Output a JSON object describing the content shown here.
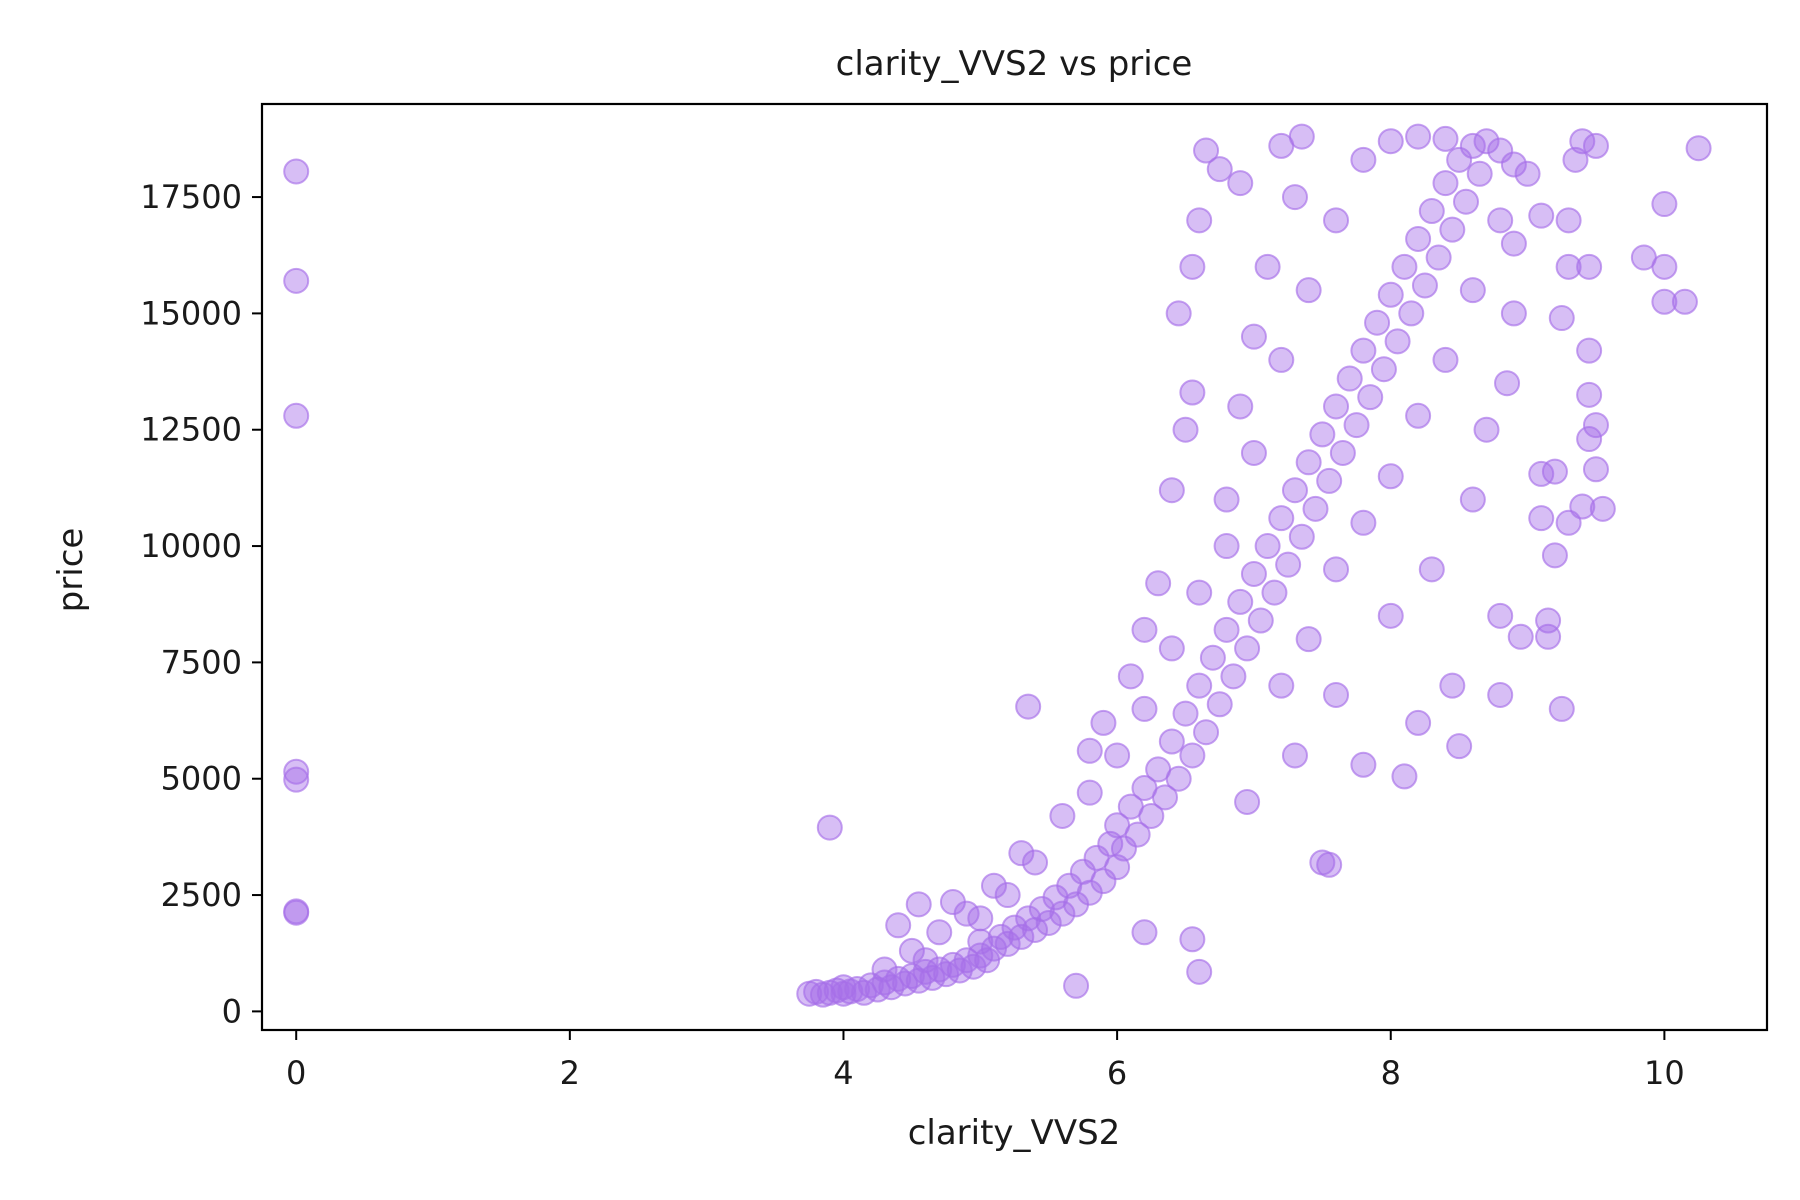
{
  "chart_data": {
    "type": "scatter",
    "title": "clarity_VVS2 vs price",
    "xlabel": "clarity_VVS2",
    "ylabel": "price",
    "xlim": [
      -0.25,
      10.75
    ],
    "ylim": [
      -400,
      19500
    ],
    "x_ticks": [
      0,
      2,
      4,
      6,
      8,
      10
    ],
    "x_tick_labels": [
      "0",
      "2",
      "4",
      "6",
      "8",
      "10"
    ],
    "y_ticks": [
      0,
      2500,
      5000,
      7500,
      10000,
      12500,
      15000,
      17500
    ],
    "y_tick_labels": [
      "0",
      "2500",
      "5000",
      "7500",
      "10000",
      "12500",
      "15000",
      "17500"
    ],
    "grid": false,
    "legend": "none",
    "marker_color": "#a66ee8",
    "marker_opacity": 0.45,
    "series": [
      {
        "points": [
          [
            0,
            18050
          ],
          [
            0,
            15700
          ],
          [
            0,
            12800
          ],
          [
            0,
            5150
          ],
          [
            0,
            4980
          ],
          [
            0,
            2150
          ],
          [
            0,
            2120
          ],
          [
            3.75,
            380
          ],
          [
            3.8,
            420
          ],
          [
            3.85,
            360
          ],
          [
            3.9,
            400
          ],
          [
            3.95,
            450
          ],
          [
            4.0,
            380
          ],
          [
            4.0,
            520
          ],
          [
            4.05,
            430
          ],
          [
            4.1,
            480
          ],
          [
            4.15,
            400
          ],
          [
            4.2,
            560
          ],
          [
            4.25,
            470
          ],
          [
            4.3,
            620
          ],
          [
            4.35,
            520
          ],
          [
            4.4,
            700
          ],
          [
            4.45,
            600
          ],
          [
            4.5,
            760
          ],
          [
            4.55,
            660
          ],
          [
            4.6,
            850
          ],
          [
            4.65,
            720
          ],
          [
            4.7,
            900
          ],
          [
            4.75,
            800
          ],
          [
            4.8,
            1000
          ],
          [
            4.85,
            880
          ],
          [
            4.9,
            1100
          ],
          [
            4.95,
            960
          ],
          [
            5.0,
            1200
          ],
          [
            5.0,
            1500
          ],
          [
            5.05,
            1100
          ],
          [
            5.1,
            1350
          ],
          [
            5.15,
            1600
          ],
          [
            5.2,
            1450
          ],
          [
            5.25,
            1800
          ],
          [
            5.3,
            1600
          ],
          [
            5.35,
            2000
          ],
          [
            5.4,
            1750
          ],
          [
            5.45,
            2200
          ],
          [
            5.5,
            1900
          ],
          [
            5.55,
            2450
          ],
          [
            5.6,
            2100
          ],
          [
            5.65,
            2700
          ],
          [
            5.7,
            2300
          ],
          [
            5.75,
            3000
          ],
          [
            5.8,
            2550
          ],
          [
            5.85,
            3300
          ],
          [
            5.9,
            2800
          ],
          [
            5.95,
            3600
          ],
          [
            6.0,
            3100
          ],
          [
            6.0,
            4000
          ],
          [
            6.05,
            3500
          ],
          [
            6.1,
            4400
          ],
          [
            6.15,
            3800
          ],
          [
            6.2,
            4800
          ],
          [
            6.25,
            4200
          ],
          [
            6.3,
            5200
          ],
          [
            6.35,
            4600
          ],
          [
            6.4,
            5800
          ],
          [
            6.45,
            5000
          ],
          [
            6.5,
            6400
          ],
          [
            6.55,
            5500
          ],
          [
            6.6,
            7000
          ],
          [
            6.65,
            6000
          ],
          [
            6.7,
            7600
          ],
          [
            6.75,
            6600
          ],
          [
            6.8,
            8200
          ],
          [
            6.85,
            7200
          ],
          [
            6.9,
            8800
          ],
          [
            6.95,
            7800
          ],
          [
            7.0,
            9400
          ],
          [
            7.05,
            8400
          ],
          [
            7.1,
            10000
          ],
          [
            7.15,
            9000
          ],
          [
            7.2,
            10600
          ],
          [
            7.25,
            9600
          ],
          [
            7.3,
            11200
          ],
          [
            7.35,
            10200
          ],
          [
            7.4,
            11800
          ],
          [
            7.45,
            10800
          ],
          [
            7.5,
            12400
          ],
          [
            7.55,
            11400
          ],
          [
            7.6,
            13000
          ],
          [
            7.65,
            12000
          ],
          [
            7.7,
            13600
          ],
          [
            7.75,
            12600
          ],
          [
            7.8,
            14200
          ],
          [
            7.85,
            13200
          ],
          [
            7.9,
            14800
          ],
          [
            7.95,
            13800
          ],
          [
            8.0,
            15400
          ],
          [
            8.05,
            14400
          ],
          [
            8.1,
            16000
          ],
          [
            8.15,
            15000
          ],
          [
            8.2,
            16600
          ],
          [
            8.25,
            15600
          ],
          [
            8.3,
            17200
          ],
          [
            8.35,
            16200
          ],
          [
            8.4,
            17800
          ],
          [
            8.45,
            16800
          ],
          [
            8.5,
            18300
          ],
          [
            8.55,
            17400
          ],
          [
            8.6,
            18600
          ],
          [
            8.65,
            18000
          ],
          [
            8.7,
            18700
          ],
          [
            8.8,
            18500
          ],
          [
            8.9,
            18200
          ],
          [
            9.0,
            18000
          ],
          [
            3.9,
            3950
          ],
          [
            5.35,
            6550
          ],
          [
            5.7,
            550
          ],
          [
            6.2,
            1700
          ],
          [
            6.55,
            1550
          ],
          [
            6.6,
            850
          ],
          [
            7.5,
            3200
          ],
          [
            7.55,
            3150
          ],
          [
            7.8,
            5300
          ],
          [
            8.1,
            5050
          ],
          [
            8.2,
            6200
          ],
          [
            8.45,
            7000
          ],
          [
            8.5,
            5700
          ],
          [
            8.8,
            6800
          ],
          [
            8.8,
            8500
          ],
          [
            8.95,
            8050
          ],
          [
            9.15,
            8050
          ],
          [
            9.15,
            8400
          ],
          [
            9.25,
            6500
          ],
          [
            9.1,
            10600
          ],
          [
            9.2,
            9800
          ],
          [
            9.3,
            10500
          ],
          [
            9.4,
            10850
          ],
          [
            9.55,
            10800
          ],
          [
            9.1,
            11550
          ],
          [
            9.2,
            11600
          ],
          [
            9.5,
            11650
          ],
          [
            9.45,
            12300
          ],
          [
            9.5,
            12600
          ],
          [
            9.45,
            13250
          ],
          [
            9.25,
            14900
          ],
          [
            9.45,
            14200
          ],
          [
            9.3,
            16000
          ],
          [
            9.45,
            16000
          ],
          [
            9.3,
            17000
          ],
          [
            9.1,
            17100
          ],
          [
            9.4,
            18700
          ],
          [
            9.5,
            18600
          ],
          [
            9.35,
            18300
          ],
          [
            9.85,
            16200
          ],
          [
            10.0,
            16000
          ],
          [
            10.0,
            15250
          ],
          [
            10.15,
            15250
          ],
          [
            10.0,
            17350
          ],
          [
            10.25,
            18550
          ],
          [
            6.45,
            15000
          ],
          [
            6.55,
            16000
          ],
          [
            6.6,
            17000
          ],
          [
            6.65,
            18500
          ],
          [
            6.75,
            18100
          ],
          [
            6.9,
            17800
          ],
          [
            7.2,
            18600
          ],
          [
            7.35,
            18800
          ],
          [
            6.5,
            12500
          ],
          [
            6.55,
            13300
          ],
          [
            6.4,
            11200
          ],
          [
            6.3,
            9200
          ],
          [
            6.2,
            8200
          ],
          [
            6.1,
            7200
          ],
          [
            5.9,
            6200
          ],
          [
            5.8,
            5600
          ],
          [
            7.2,
            7000
          ],
          [
            7.4,
            8000
          ],
          [
            7.6,
            9500
          ],
          [
            7.8,
            10500
          ],
          [
            8.0,
            11500
          ],
          [
            8.2,
            12800
          ],
          [
            8.4,
            14000
          ],
          [
            8.6,
            15500
          ],
          [
            8.8,
            17000
          ],
          [
            8.9,
            16500
          ],
          [
            7.0,
            12000
          ],
          [
            7.2,
            14000
          ],
          [
            7.4,
            15500
          ],
          [
            7.6,
            17000
          ],
          [
            7.8,
            18300
          ],
          [
            8.0,
            18700
          ],
          [
            8.2,
            18800
          ],
          [
            8.4,
            18750
          ],
          [
            6.8,
            11000
          ],
          [
            6.9,
            13000
          ],
          [
            7.0,
            14500
          ],
          [
            7.1,
            16000
          ],
          [
            7.3,
            17500
          ],
          [
            6.95,
            4500
          ],
          [
            7.3,
            5500
          ],
          [
            7.6,
            6800
          ],
          [
            8.0,
            8500
          ],
          [
            8.3,
            9500
          ],
          [
            8.6,
            11000
          ],
          [
            8.7,
            12500
          ],
          [
            8.85,
            13500
          ],
          [
            8.9,
            15000
          ],
          [
            5.0,
            2000
          ],
          [
            5.2,
            2500
          ],
          [
            5.4,
            3200
          ],
          [
            5.6,
            4200
          ],
          [
            5.8,
            4700
          ],
          [
            6.0,
            5500
          ],
          [
            6.2,
            6500
          ],
          [
            6.4,
            7800
          ],
          [
            6.6,
            9000
          ],
          [
            6.8,
            10000
          ],
          [
            4.5,
            1300
          ],
          [
            4.7,
            1700
          ],
          [
            4.9,
            2100
          ],
          [
            5.1,
            2700
          ],
          [
            5.3,
            3400
          ],
          [
            4.3,
            900
          ],
          [
            4.6,
            1100
          ],
          [
            4.4,
            1850
          ],
          [
            4.55,
            2300
          ],
          [
            4.8,
            2350
          ]
        ]
      }
    ]
  }
}
